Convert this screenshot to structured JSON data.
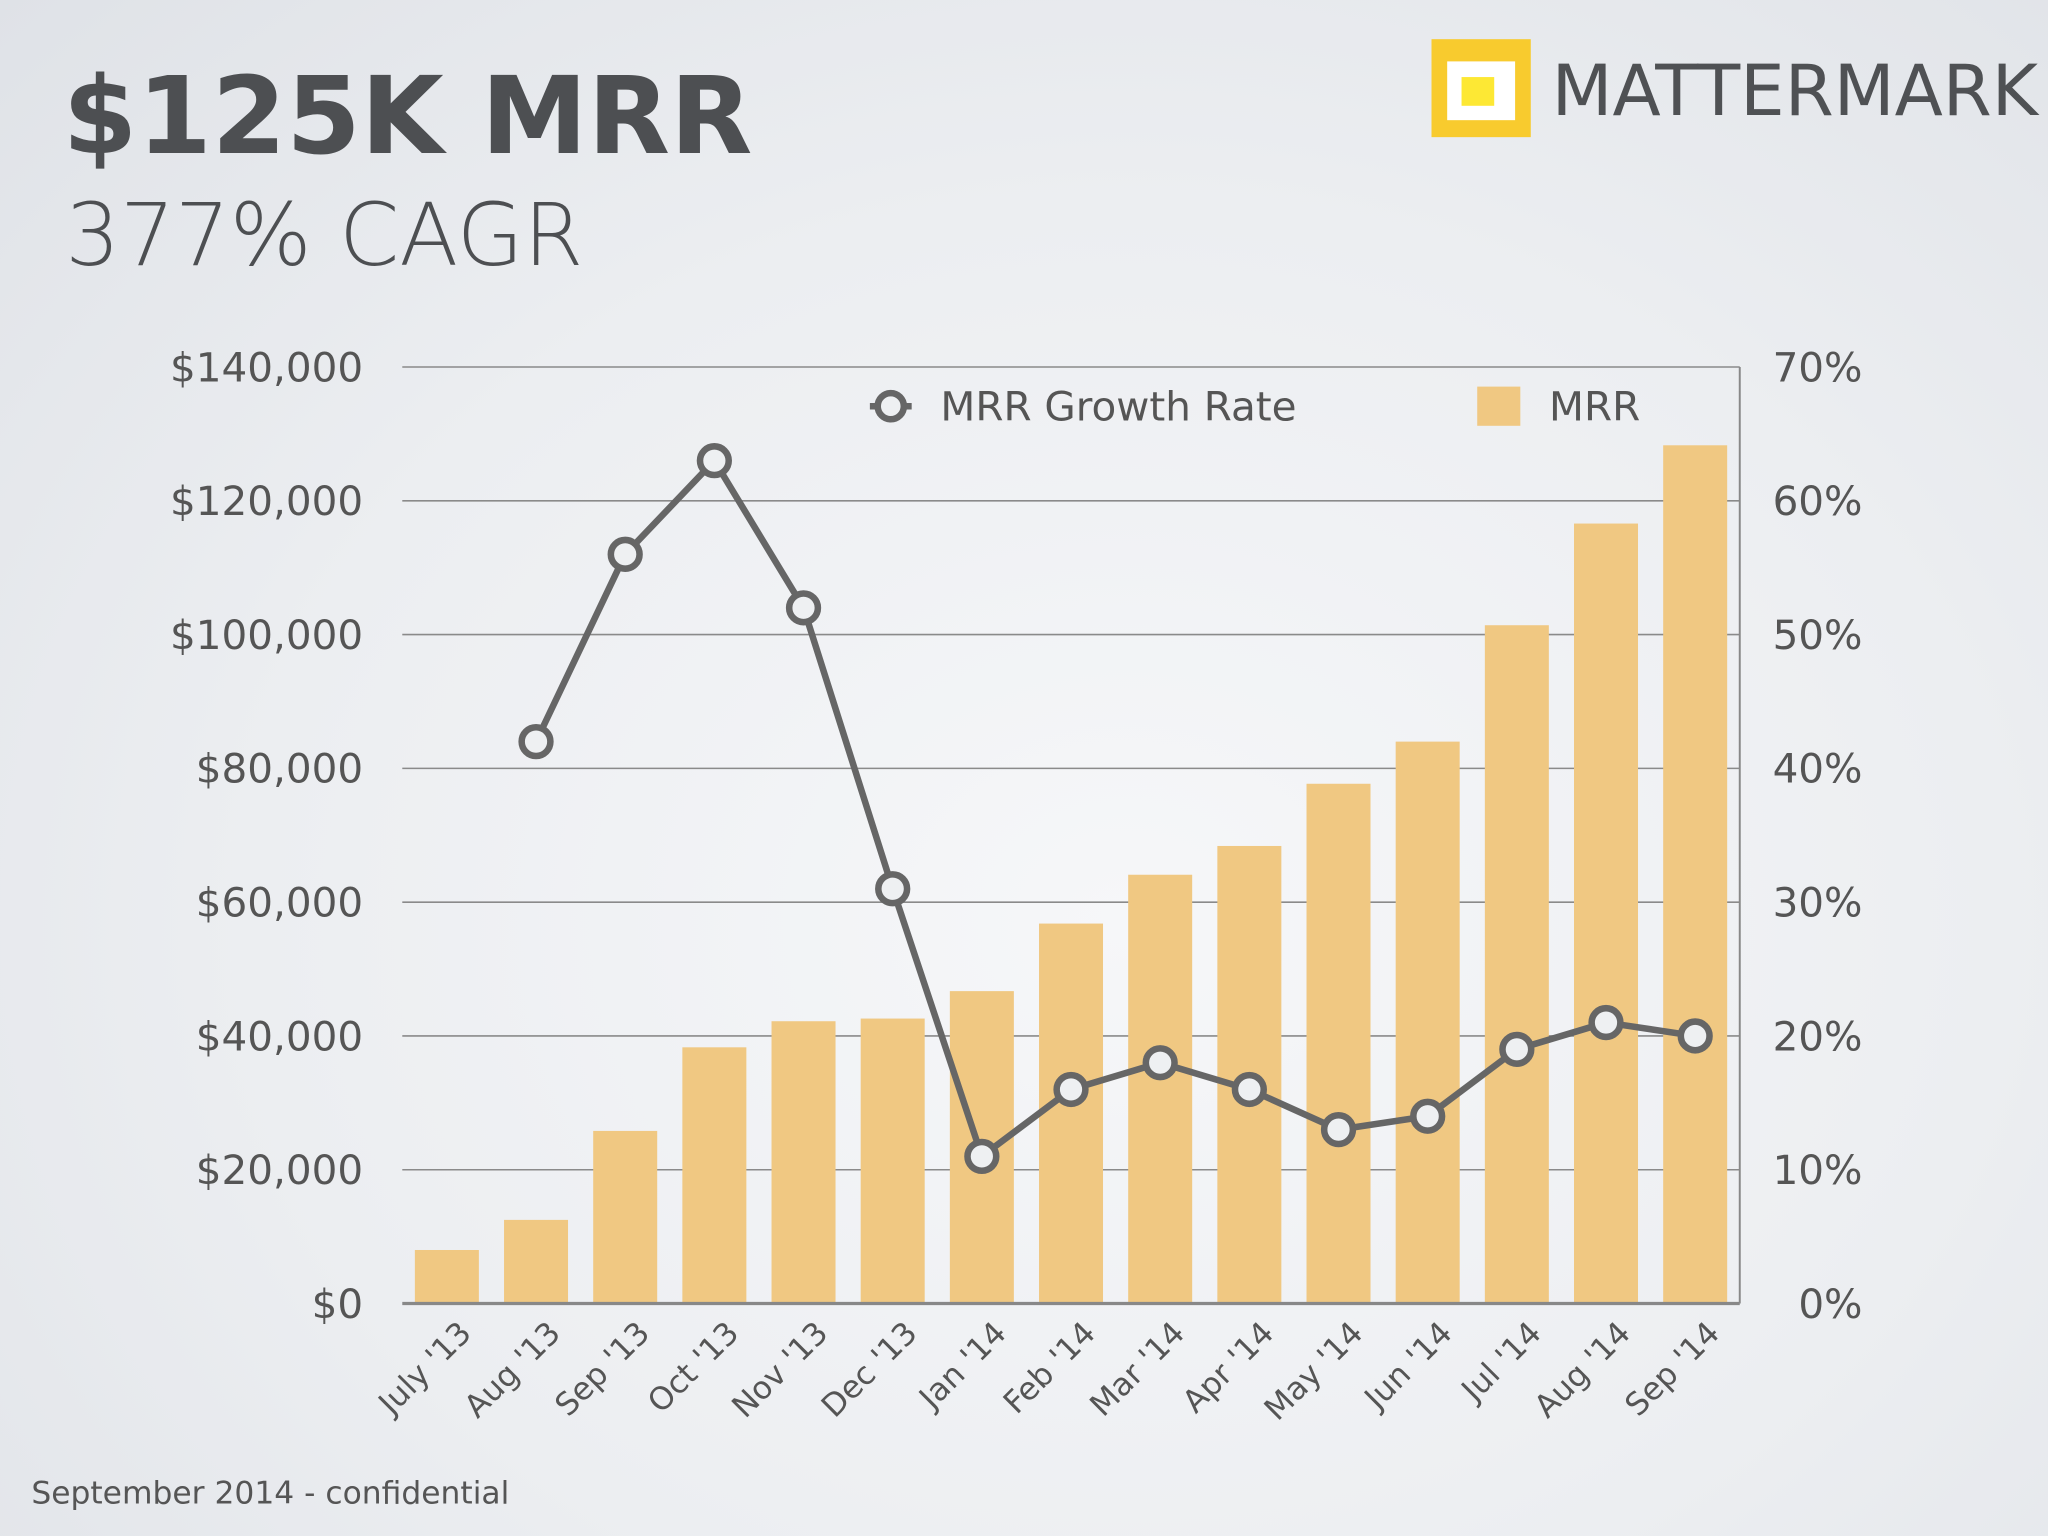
{
  "header": {
    "title": "$125K MRR",
    "subtitle": "377% CAGR"
  },
  "brand": {
    "name": "MATTERMARK",
    "logo_colors": {
      "outer": "#f8cb2e",
      "inner": "#ffffff",
      "center": "#fde834"
    }
  },
  "footer": {
    "text": "September 2014 - confidential"
  },
  "chart_data": {
    "type": "bar+line",
    "categories": [
      "July '13",
      "Aug '13",
      "Sep '13",
      "Oct '13",
      "Nov '13",
      "Dec '13",
      "Jan '14",
      "Feb '14",
      "Mar '14",
      "Apr '14",
      "May '14",
      "Jun '14",
      "Jul '14",
      "Aug '14",
      "Sep '14"
    ],
    "series": [
      {
        "name": "MRR",
        "type": "bar",
        "axis": "left",
        "color": "#f0c882",
        "values": [
          8000,
          12500,
          25800,
          38300,
          42200,
          42600,
          46700,
          56800,
          64100,
          68400,
          77700,
          84000,
          101400,
          116600,
          128300
        ]
      },
      {
        "name": "MRR Growth Rate",
        "type": "line",
        "axis": "right",
        "color": "#666666",
        "values": [
          null,
          42,
          56,
          63,
          52,
          31,
          11,
          16,
          18,
          16,
          13,
          14,
          19,
          21,
          20
        ]
      }
    ],
    "y_left": {
      "min": 0,
      "max": 140000,
      "ticks": [
        "$0",
        "$20,000",
        "$40,000",
        "$60,000",
        "$80,000",
        "$100,000",
        "$120,000",
        "$140,000"
      ]
    },
    "y_right": {
      "min": 0,
      "max": 70,
      "ticks": [
        "0%",
        "10%",
        "20%",
        "30%",
        "40%",
        "50%",
        "60%",
        "70%"
      ]
    },
    "grid": true,
    "legend": {
      "position": "top",
      "items": [
        "MRR Growth Rate",
        "MRR"
      ]
    }
  }
}
